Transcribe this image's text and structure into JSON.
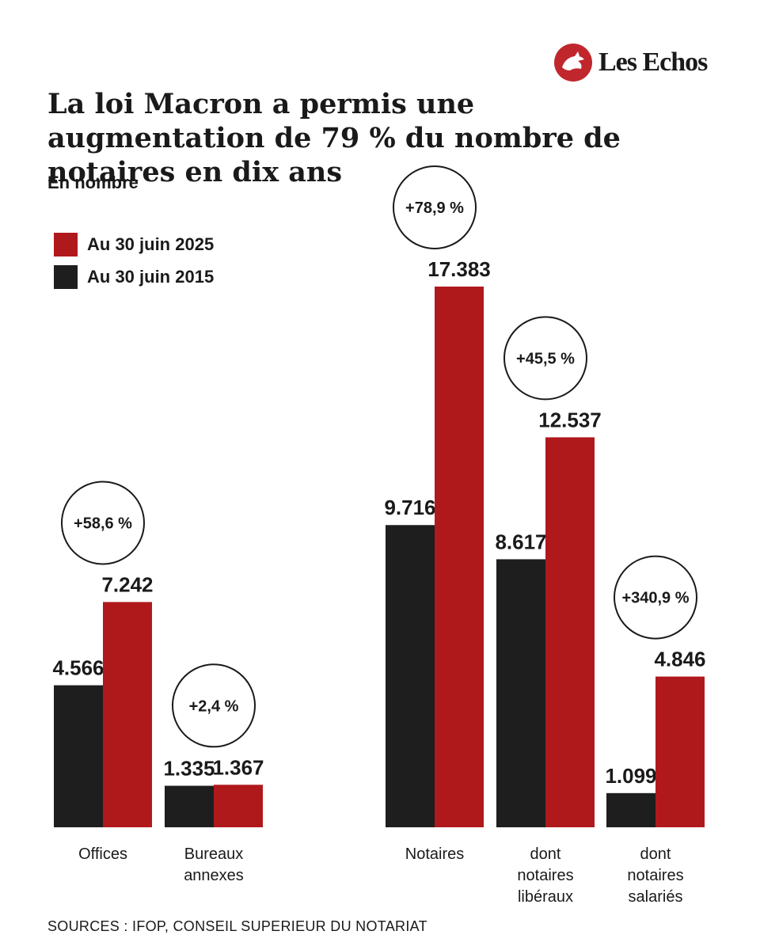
{
  "brand": {
    "name": "Les Echos",
    "color": "#c0272d"
  },
  "title": "La loi Macron a permis une augmentation de 79 % du nombre de notaires en dix ans",
  "unit_label": "En nombre",
  "source": "SOURCES : IFOP, CONSEIL SUPERIEUR DU NOTARIAT",
  "colors": {
    "2025": "#b0191c",
    "2015": "#1e1e1e"
  },
  "chart_data": {
    "type": "bar",
    "categories": [
      [
        "Offices"
      ],
      [
        "Bureaux",
        "annexes"
      ],
      [
        "Notaires"
      ],
      [
        "dont",
        "notaires",
        "libéraux"
      ],
      [
        "dont",
        "notaires",
        "salariés"
      ]
    ],
    "series": [
      {
        "name": "Au 30 juin 2015",
        "values": [
          4566,
          1335,
          9716,
          8617,
          1099
        ],
        "labels": [
          "4.566",
          "1.335",
          "9.716",
          "8.617",
          "1.099"
        ]
      },
      {
        "name": "Au 30 juin 2025",
        "values": [
          7242,
          1367,
          17383,
          12537,
          4846
        ],
        "labels": [
          "7.242",
          "1.367",
          "17.383",
          "12.537",
          "4.846"
        ]
      }
    ],
    "changes": [
      "+58,6 %",
      "+2,4 %",
      "+78,9 %",
      "+45,5 %",
      "+340,9 %"
    ],
    "legend": [
      "Au 30 juin 2025",
      "Au 30 juin 2015"
    ],
    "grid": false
  }
}
